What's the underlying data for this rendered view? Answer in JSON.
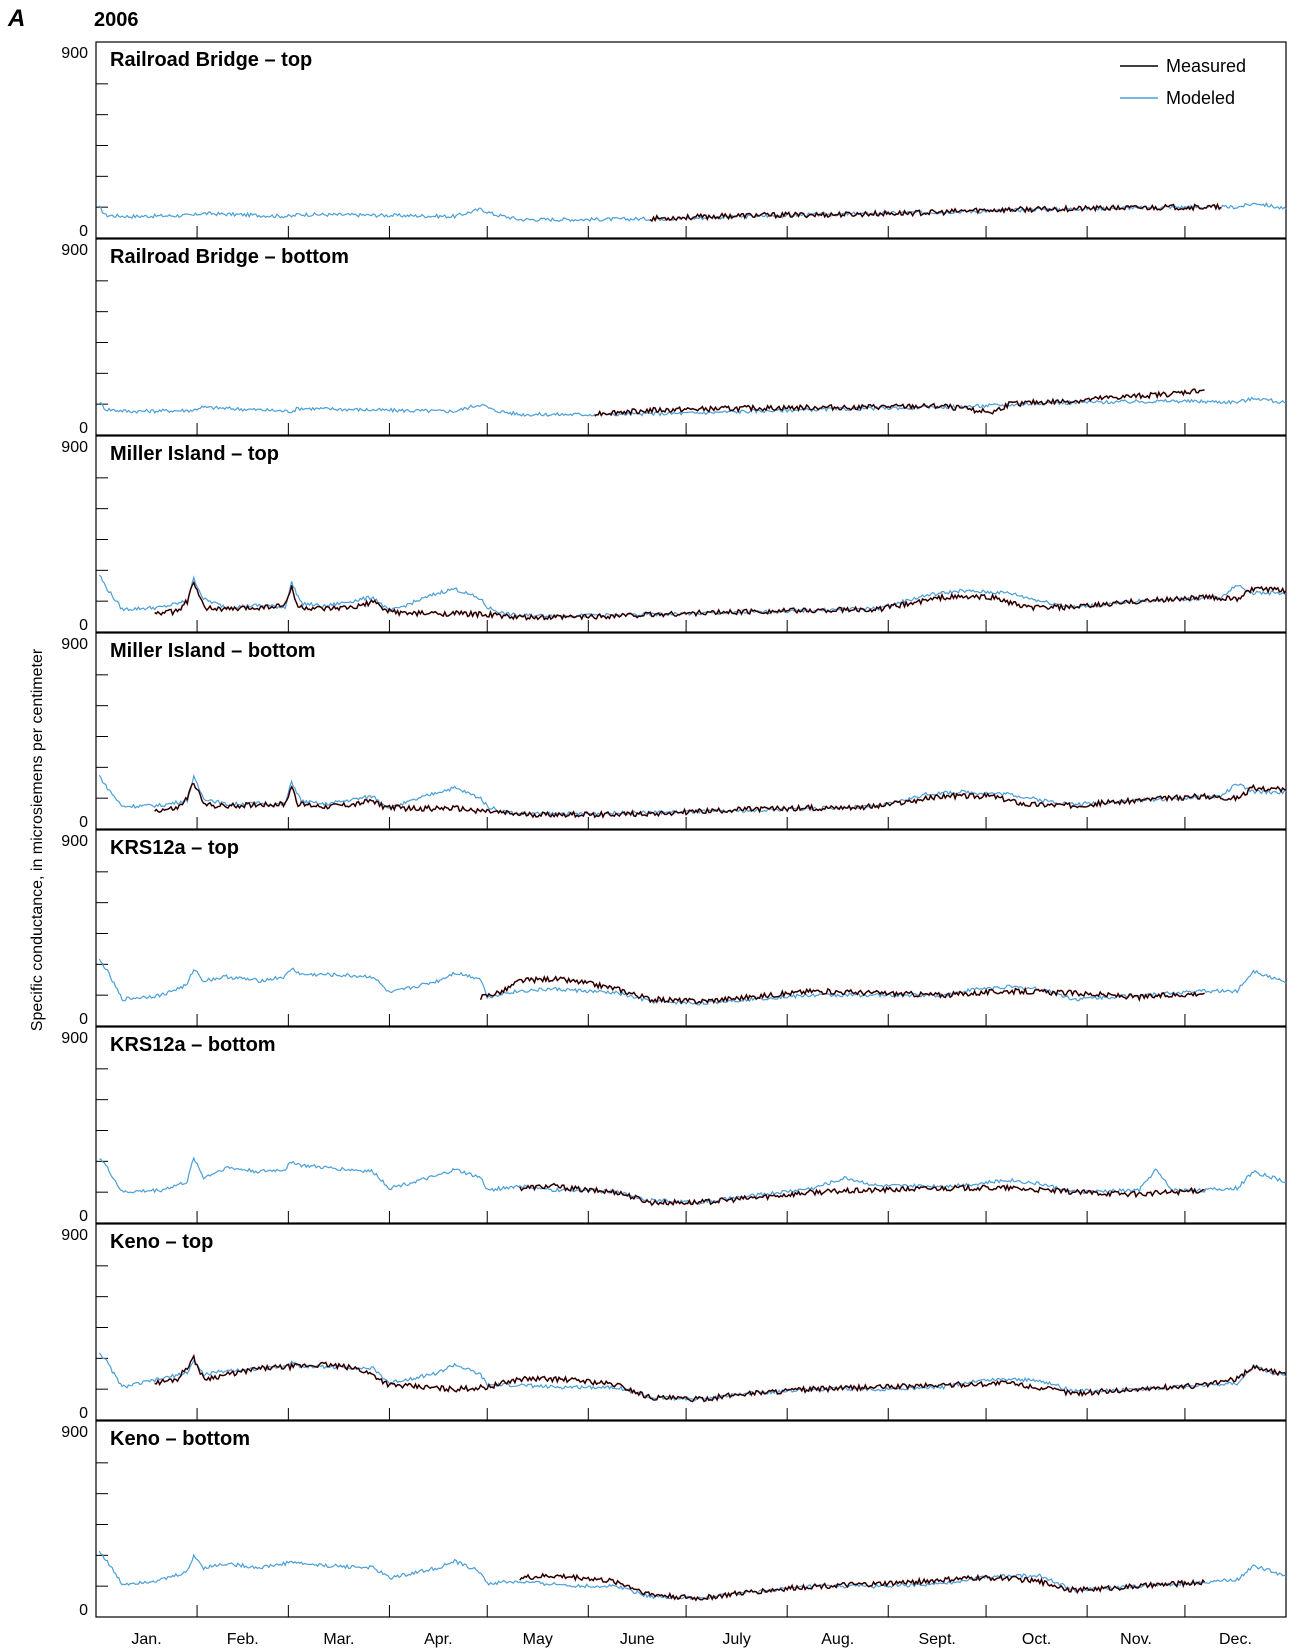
{
  "figure": {
    "panel_label": "A",
    "year": "2006",
    "ylabel": "Specific conductance, in microsiemens per centimeter"
  },
  "legend": {
    "placement": "top-right",
    "items": [
      {
        "label": "Measured",
        "color": "#000000"
      },
      {
        "label": "Modeled",
        "color": "#4a9fd8"
      }
    ]
  },
  "colors": {
    "measured": "#000000",
    "measured_shadow": "#8b1a1a",
    "modeled": "#4a9fd8",
    "axes": "#000000"
  },
  "months": [
    "Jan.",
    "Feb.",
    "Mar.",
    "Apr.",
    "May",
    "June",
    "July",
    "Aug.",
    "Sept.",
    "Oct.",
    "Nov.",
    "Dec."
  ],
  "chart_data": [
    {
      "type": "line",
      "title": "Railroad Bridge – top",
      "ylim": [
        0,
        900
      ],
      "yticks": [
        "900",
        "0"
      ],
      "x_unit": "day of year",
      "series": [
        {
          "name": "Measured",
          "x": [
            170,
            200,
            230,
            260,
            270,
            290,
            310,
            330,
            345
          ],
          "values": [
            95,
            110,
            115,
            125,
            135,
            140,
            145,
            150,
            150
          ]
        },
        {
          "name": "Modeled",
          "x": [
            1,
            3,
            10,
            30,
            32,
            60,
            62,
            90,
            110,
            118,
            122,
            130,
            150,
            180,
            210,
            240,
            270,
            290,
            310,
            330,
            350,
            356,
            365
          ],
          "values": [
            150,
            110,
            105,
            110,
            120,
            105,
            115,
            110,
            105,
            140,
            115,
            90,
            90,
            95,
            110,
            120,
            130,
            140,
            145,
            150,
            150,
            170,
            140
          ]
        }
      ]
    },
    {
      "type": "line",
      "title": "Railroad Bridge – bottom",
      "ylim": [
        0,
        900
      ],
      "yticks": [
        "900",
        "0"
      ],
      "x_unit": "day of year",
      "series": [
        {
          "name": "Measured",
          "x": [
            153,
            170,
            200,
            230,
            260,
            275,
            280,
            290,
            300,
            310,
            320,
            330,
            340
          ],
          "values": [
            105,
            120,
            130,
            135,
            140,
            110,
            150,
            160,
            165,
            180,
            190,
            200,
            220
          ]
        },
        {
          "name": "Modeled",
          "x": [
            1,
            3,
            10,
            30,
            32,
            60,
            62,
            90,
            110,
            118,
            122,
            130,
            150,
            180,
            210,
            240,
            270,
            290,
            310,
            330,
            350,
            356,
            365
          ],
          "values": [
            160,
            125,
            115,
            120,
            135,
            115,
            130,
            120,
            115,
            150,
            120,
            100,
            100,
            105,
            120,
            130,
            140,
            155,
            160,
            165,
            160,
            180,
            155
          ]
        }
      ]
    },
    {
      "type": "line",
      "title": "Miller Island – top",
      "ylim": [
        0,
        900
      ],
      "yticks": [
        "900",
        "0"
      ],
      "x_unit": "day of year",
      "series": [
        {
          "name": "Measured",
          "x": [
            18,
            25,
            28,
            30,
            33,
            40,
            50,
            58,
            60,
            62,
            70,
            80,
            85,
            88,
            95,
            100,
            110,
            120,
            130,
            140,
            160,
            200,
            240,
            260,
            275,
            285,
            300,
            320,
            340,
            350,
            355,
            365
          ],
          "values": [
            90,
            100,
            150,
            240,
            120,
            110,
            120,
            130,
            220,
            120,
            110,
            120,
            150,
            110,
            90,
            90,
            90,
            85,
            70,
            70,
            80,
            100,
            110,
            170,
            170,
            120,
            120,
            150,
            170,
            160,
            210,
            200
          ]
        },
        {
          "name": "Modeled",
          "x": [
            1,
            3,
            8,
            20,
            28,
            30,
            33,
            40,
            50,
            58,
            60,
            63,
            70,
            85,
            90,
            105,
            110,
            118,
            120,
            125,
            130,
            150,
            170,
            200,
            240,
            255,
            265,
            280,
            290,
            300,
            320,
            345,
            350,
            355,
            365
          ],
          "values": [
            280,
            220,
            110,
            120,
            150,
            260,
            160,
            120,
            130,
            120,
            240,
            140,
            125,
            170,
            100,
            190,
            210,
            160,
            120,
            90,
            80,
            80,
            85,
            95,
            115,
            180,
            200,
            190,
            150,
            120,
            150,
            170,
            230,
            190,
            190
          ]
        }
      ]
    },
    {
      "type": "line",
      "title": "Miller Island – bottom",
      "ylim": [
        0,
        900
      ],
      "yticks": [
        "900",
        "0"
      ],
      "x_unit": "day of year",
      "series": [
        {
          "name": "Measured",
          "x": [
            18,
            25,
            28,
            30,
            33,
            40,
            50,
            58,
            60,
            62,
            70,
            80,
            85,
            88,
            95,
            110,
            130,
            150,
            170,
            200,
            240,
            260,
            275,
            285,
            300,
            320,
            340,
            350,
            355,
            365
          ],
          "values": [
            90,
            100,
            150,
            230,
            120,
            110,
            120,
            120,
            210,
            120,
            110,
            120,
            140,
            110,
            100,
            100,
            70,
            70,
            75,
            95,
            110,
            160,
            160,
            120,
            115,
            140,
            160,
            150,
            200,
            190
          ]
        },
        {
          "name": "Modeled",
          "x": [
            1,
            3,
            8,
            20,
            28,
            30,
            33,
            40,
            50,
            58,
            60,
            63,
            70,
            85,
            90,
            105,
            110,
            118,
            120,
            125,
            130,
            150,
            170,
            200,
            240,
            255,
            265,
            280,
            290,
            300,
            320,
            345,
            350,
            355,
            365
          ],
          "values": [
            260,
            210,
            110,
            115,
            140,
            250,
            150,
            120,
            125,
            120,
            230,
            135,
            120,
            160,
            100,
            180,
            200,
            150,
            110,
            85,
            75,
            75,
            80,
            90,
            110,
            170,
            180,
            170,
            140,
            120,
            140,
            160,
            220,
            180,
            180
          ]
        }
      ]
    },
    {
      "type": "line",
      "title": "KRS12a – top",
      "ylim": [
        0,
        900
      ],
      "yticks": [
        "900",
        "0"
      ],
      "x_unit": "day of year",
      "series": [
        {
          "name": "Measured",
          "x": [
            118,
            125,
            130,
            140,
            150,
            160,
            170,
            185,
            200,
            220,
            240,
            260,
            280,
            300,
            320,
            340
          ],
          "values": [
            140,
            170,
            220,
            230,
            210,
            180,
            130,
            120,
            140,
            170,
            160,
            150,
            170,
            160,
            140,
            160
          ]
        },
        {
          "name": "Modeled",
          "x": [
            1,
            3,
            8,
            20,
            28,
            30,
            33,
            40,
            50,
            58,
            60,
            63,
            70,
            85,
            90,
            105,
            110,
            118,
            120,
            125,
            130,
            140,
            150,
            160,
            170,
            185,
            200,
            220,
            240,
            260,
            270,
            280,
            290,
            300,
            320,
            340,
            350,
            355,
            365
          ],
          "values": [
            320,
            280,
            130,
            150,
            200,
            280,
            220,
            240,
            220,
            240,
            280,
            250,
            250,
            240,
            160,
            220,
            260,
            230,
            140,
            160,
            170,
            180,
            170,
            160,
            120,
            110,
            130,
            150,
            150,
            150,
            180,
            190,
            180,
            130,
            150,
            170,
            170,
            270,
            210
          ]
        }
      ]
    },
    {
      "type": "line",
      "title": "KRS12a – bottom",
      "ylim": [
        0,
        900
      ],
      "yticks": [
        "900",
        "0"
      ],
      "x_unit": "day of year",
      "series": [
        {
          "name": "Measured",
          "x": [
            130,
            140,
            150,
            160,
            170,
            185,
            200,
            220,
            240,
            260,
            280,
            300,
            320,
            340
          ],
          "values": [
            170,
            180,
            160,
            150,
            100,
            100,
            120,
            150,
            160,
            170,
            170,
            150,
            140,
            160
          ]
        },
        {
          "name": "Modeled",
          "x": [
            1,
            3,
            8,
            20,
            28,
            30,
            33,
            40,
            50,
            58,
            60,
            63,
            70,
            85,
            90,
            105,
            110,
            118,
            120,
            125,
            130,
            140,
            150,
            160,
            170,
            185,
            200,
            220,
            230,
            240,
            260,
            270,
            280,
            290,
            300,
            320,
            325,
            330,
            340,
            350,
            355,
            365
          ],
          "values": [
            320,
            280,
            150,
            160,
            200,
            320,
            220,
            270,
            250,
            260,
            300,
            280,
            270,
            250,
            170,
            230,
            260,
            220,
            160,
            170,
            180,
            160,
            160,
            150,
            110,
            100,
            130,
            170,
            220,
            180,
            180,
            190,
            210,
            190,
            150,
            160,
            260,
            160,
            160,
            170,
            250,
            200
          ]
        }
      ]
    },
    {
      "type": "line",
      "title": "Keno – top",
      "ylim": [
        0,
        900
      ],
      "yticks": [
        "900",
        "0"
      ],
      "x_unit": "day of year",
      "series": [
        {
          "name": "Measured",
          "x": [
            18,
            25,
            30,
            33,
            40,
            50,
            60,
            70,
            80,
            85,
            90,
            100,
            110,
            120,
            130,
            140,
            150,
            160,
            170,
            185,
            200,
            220,
            240,
            260,
            280,
            300,
            320,
            340,
            350,
            355,
            365
          ],
          "values": [
            180,
            200,
            300,
            200,
            220,
            250,
            260,
            270,
            250,
            220,
            170,
            160,
            150,
            160,
            200,
            200,
            190,
            170,
            110,
            100,
            130,
            150,
            160,
            170,
            180,
            130,
            150,
            170,
            200,
            260,
            220
          ]
        },
        {
          "name": "Modeled",
          "x": [
            1,
            3,
            8,
            20,
            28,
            30,
            33,
            40,
            50,
            58,
            60,
            63,
            70,
            85,
            90,
            105,
            110,
            118,
            120,
            125,
            130,
            140,
            150,
            160,
            170,
            185,
            200,
            220,
            240,
            260,
            270,
            280,
            290,
            300,
            320,
            340,
            350,
            355,
            365
          ],
          "values": [
            330,
            290,
            160,
            200,
            230,
            290,
            220,
            240,
            250,
            260,
            280,
            260,
            260,
            250,
            180,
            230,
            270,
            220,
            170,
            170,
            170,
            160,
            160,
            160,
            110,
            100,
            130,
            150,
            150,
            160,
            190,
            200,
            190,
            140,
            150,
            170,
            180,
            260,
            210
          ]
        }
      ]
    },
    {
      "type": "line",
      "title": "Keno – bottom",
      "ylim": [
        0,
        900
      ],
      "yticks": [
        "900",
        "0"
      ],
      "x_unit": "day of year",
      "series": [
        {
          "name": "Measured",
          "x": [
            130,
            140,
            150,
            160,
            170,
            185,
            200,
            220,
            240,
            260,
            270,
            280,
            290,
            300,
            320,
            340
          ],
          "values": [
            190,
            200,
            190,
            170,
            110,
            90,
            120,
            150,
            160,
            180,
            190,
            190,
            170,
            130,
            150,
            170
          ]
        },
        {
          "name": "Modeled",
          "x": [
            1,
            3,
            8,
            20,
            28,
            30,
            33,
            40,
            50,
            58,
            60,
            63,
            70,
            85,
            90,
            105,
            110,
            118,
            120,
            125,
            130,
            140,
            150,
            160,
            170,
            185,
            200,
            220,
            240,
            260,
            270,
            280,
            290,
            300,
            320,
            340,
            350,
            355,
            365
          ],
          "values": [
            320,
            280,
            160,
            180,
            220,
            300,
            240,
            260,
            240,
            260,
            270,
            260,
            250,
            240,
            190,
            240,
            270,
            220,
            160,
            170,
            170,
            160,
            150,
            150,
            100,
            90,
            120,
            150,
            150,
            160,
            190,
            200,
            200,
            130,
            150,
            170,
            180,
            250,
            200
          ]
        }
      ]
    }
  ]
}
